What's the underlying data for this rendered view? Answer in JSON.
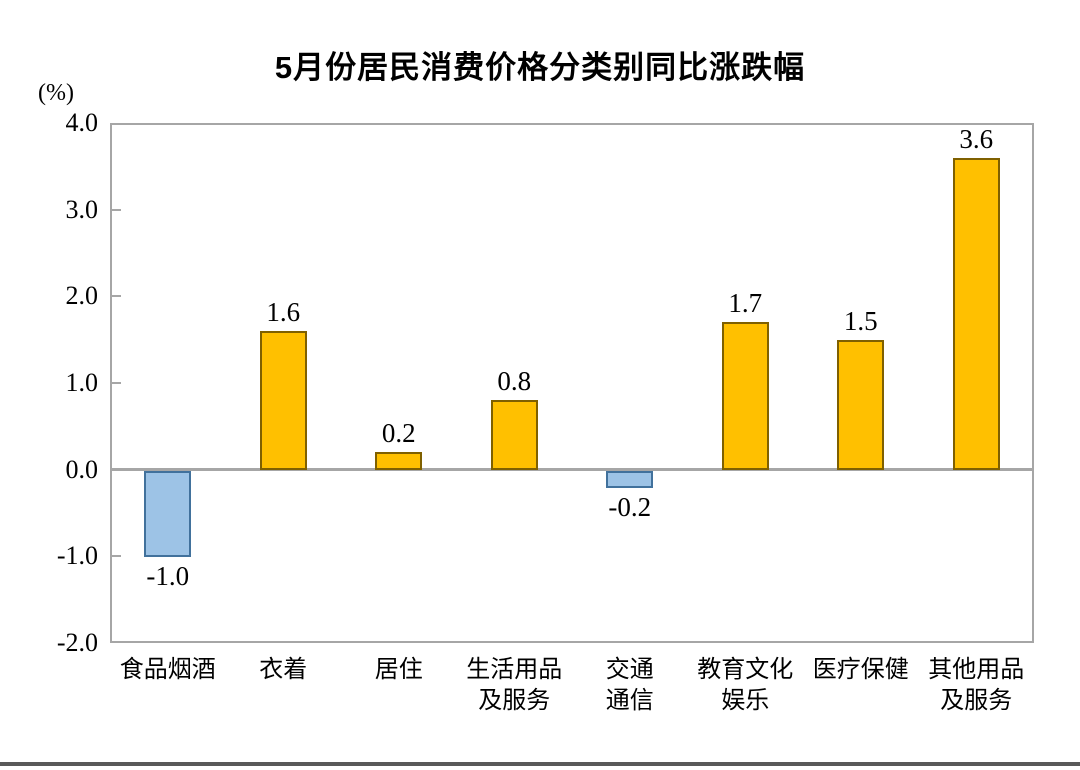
{
  "title": "5月份居民消费价格分类别同比涨跌幅",
  "unit_label": "(%)",
  "colors": {
    "positive_fill": "#FFC000",
    "positive_border": "#7F6000",
    "negative_fill": "#9DC3E6",
    "negative_border": "#41719C",
    "frame": "#A6A6A6",
    "baseline": "#A6A6A6",
    "footer_rule": "#595959",
    "text": "#000000"
  },
  "chart_data": {
    "type": "bar",
    "title": "5月份居民消费价格分类别同比涨跌幅",
    "ylabel": "(%)",
    "xlabel": "",
    "categories": [
      "食品烟酒",
      "衣着",
      "居住",
      "生活用品\n及服务",
      "交通\n通信",
      "教育文化\n娱乐",
      "医疗保健",
      "其他用品\n及服务"
    ],
    "values": [
      -1.0,
      1.6,
      0.2,
      0.8,
      -0.2,
      1.7,
      1.5,
      3.6
    ],
    "value_labels": [
      "-1.0",
      "1.6",
      "0.2",
      "0.8",
      "-0.2",
      "1.7",
      "1.5",
      "3.6"
    ],
    "ylim": [
      -2.0,
      4.0
    ],
    "ytick_labels": [
      "4.0",
      "3.0",
      "2.0",
      "1.0",
      "0.0",
      "-1.0",
      "-2.0"
    ],
    "ytick_values": [
      4.0,
      3.0,
      2.0,
      1.0,
      0.0,
      -1.0,
      -2.0
    ],
    "grid": false,
    "legend": "none",
    "bar_sign_colors": true
  }
}
